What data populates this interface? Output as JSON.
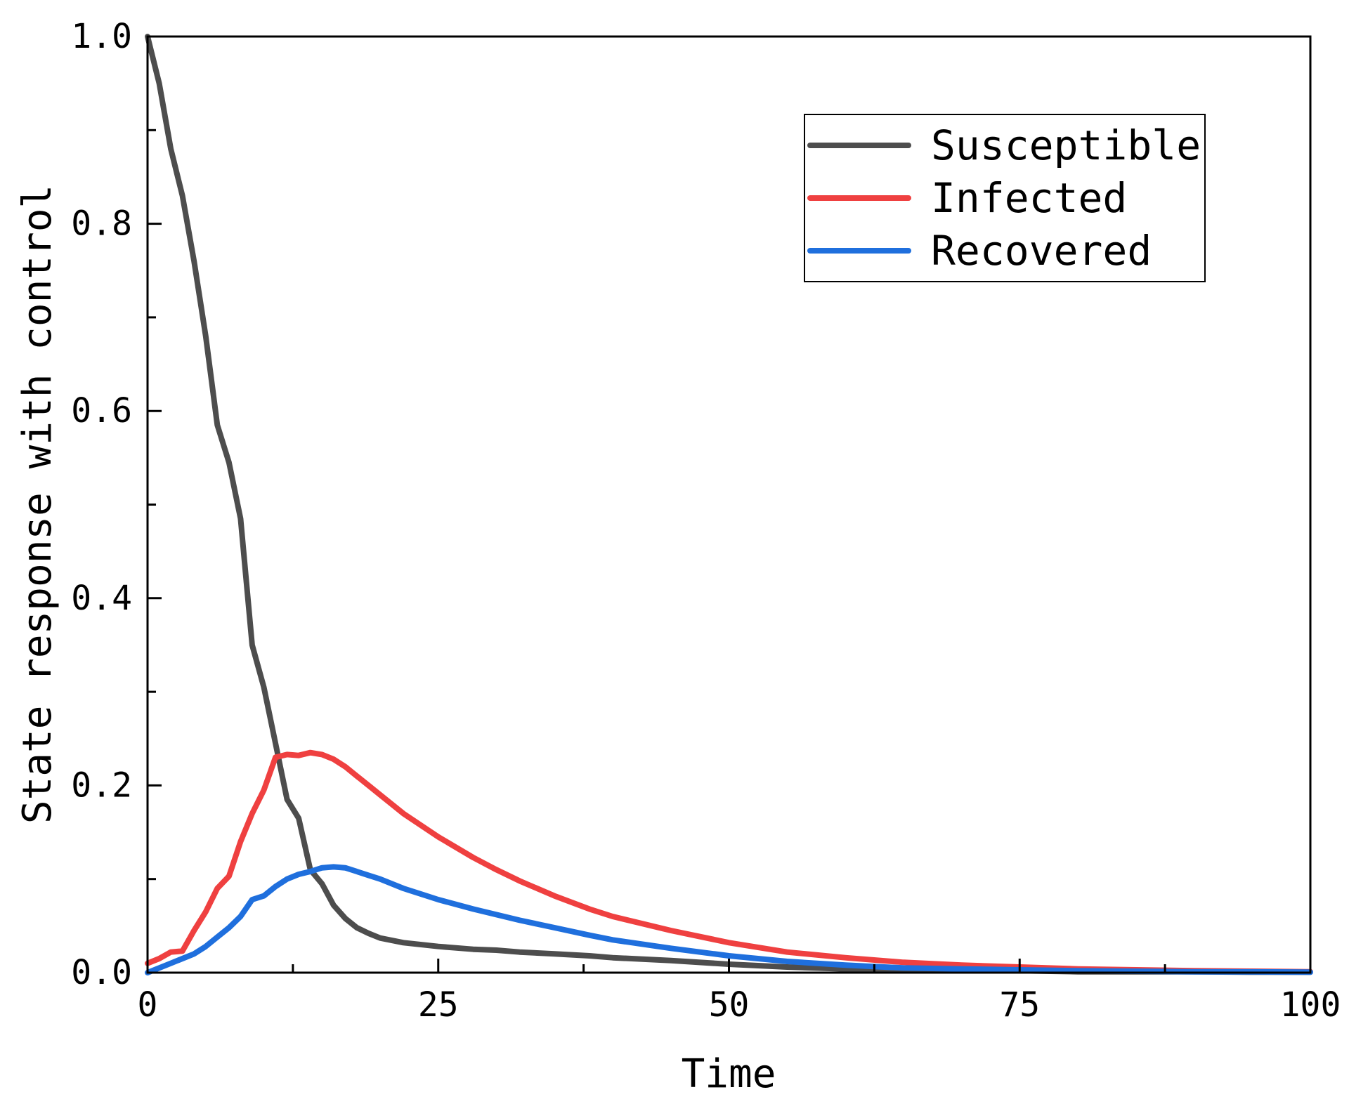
{
  "chart_data": {
    "type": "line",
    "title": "",
    "xlabel": "Time",
    "ylabel": "State response with control",
    "xlim": [
      0,
      100
    ],
    "ylim": [
      0,
      1.0
    ],
    "xticks": [
      "0",
      "25",
      "50",
      "75",
      "100"
    ],
    "yticks": [
      "0.0",
      "0.2",
      "0.4",
      "0.6",
      "0.8",
      "1.0"
    ],
    "x": [
      0,
      1,
      2,
      3,
      4,
      5,
      6,
      7,
      8,
      9,
      10,
      11,
      12,
      13,
      14,
      15,
      16,
      17,
      18,
      19,
      20,
      22,
      25,
      28,
      30,
      32,
      35,
      38,
      40,
      45,
      50,
      55,
      60,
      65,
      70,
      75,
      80,
      85,
      90,
      95,
      100
    ],
    "series": [
      {
        "name": "Susceptible",
        "color": "#4d4d4d",
        "values": [
          1.0,
          0.95,
          0.88,
          0.83,
          0.76,
          0.68,
          0.585,
          0.545,
          0.485,
          0.35,
          0.305,
          0.245,
          0.185,
          0.165,
          0.11,
          0.095,
          0.072,
          0.058,
          0.048,
          0.042,
          0.037,
          0.032,
          0.028,
          0.025,
          0.024,
          0.022,
          0.02,
          0.018,
          0.016,
          0.013,
          0.009,
          0.006,
          0.004,
          0.003,
          0.002,
          0.002,
          0.001,
          0.001,
          0.001,
          0.0005,
          0.0005
        ]
      },
      {
        "name": "Infected",
        "color": "#ef4040",
        "values": [
          0.01,
          0.015,
          0.022,
          0.023,
          0.045,
          0.065,
          0.09,
          0.103,
          0.14,
          0.17,
          0.195,
          0.23,
          0.233,
          0.232,
          0.235,
          0.233,
          0.228,
          0.22,
          0.21,
          0.2,
          0.19,
          0.17,
          0.145,
          0.123,
          0.11,
          0.098,
          0.082,
          0.068,
          0.06,
          0.045,
          0.032,
          0.022,
          0.016,
          0.011,
          0.008,
          0.006,
          0.004,
          0.003,
          0.002,
          0.0015,
          0.001
        ]
      },
      {
        "name": "Recovered",
        "color": "#1f6fdd",
        "values": [
          0.0,
          0.005,
          0.01,
          0.015,
          0.02,
          0.028,
          0.038,
          0.048,
          0.06,
          0.078,
          0.082,
          0.092,
          0.1,
          0.105,
          0.108,
          0.112,
          0.113,
          0.112,
          0.108,
          0.104,
          0.1,
          0.09,
          0.078,
          0.068,
          0.062,
          0.056,
          0.048,
          0.04,
          0.035,
          0.026,
          0.018,
          0.012,
          0.008,
          0.005,
          0.004,
          0.003,
          0.002,
          0.0015,
          0.001,
          0.0008,
          0.0005
        ]
      }
    ],
    "legend": {
      "position": "top-right",
      "entries": [
        "Susceptible",
        "Infected",
        "Recovered"
      ]
    }
  }
}
